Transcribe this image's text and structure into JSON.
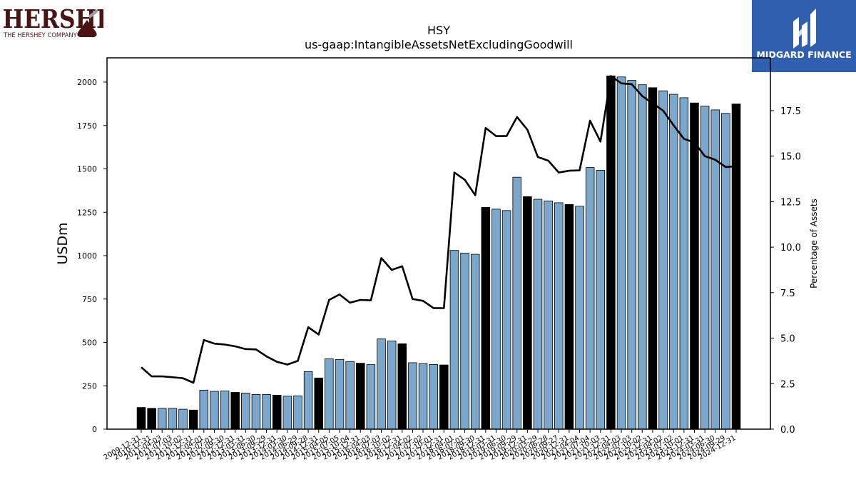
{
  "brand_left": {
    "wordmark": "HERSHEY",
    "company": "THE HERSHEY COMPANY",
    "color": "#4a1414"
  },
  "brand_right": {
    "name": "MIDGARD FINANCE",
    "background": "#2f5fae"
  },
  "chart_data": {
    "type": "bar",
    "title": "HSY",
    "subtitle": "us-gaap:IntangibleAssetsNetExcludingGoodwill",
    "ylabel": "USDm",
    "y2label": "Percentage of Assets",
    "ylim": [
      0,
      2140
    ],
    "y2lim": [
      0,
      20.4
    ],
    "yticks": [
      0,
      250,
      500,
      750,
      1000,
      1250,
      1500,
      1750,
      2000
    ],
    "y2ticks": [
      0.0,
      2.5,
      5.0,
      7.5,
      10.0,
      12.5,
      15.0,
      17.5
    ],
    "colors": {
      "annual": "#000000",
      "quarterly": "#7ba7cc",
      "line": "#000000"
    },
    "categories": [
      "2009-12-31",
      "2010-12-31",
      "2011-04-03",
      "2011-07-03",
      "2011-10-02",
      "2011-12-31",
      "2012-04-01",
      "2012-07-01",
      "2012-09-30",
      "2012-12-31",
      "2013-03-31",
      "2013-06-30",
      "2013-09-29",
      "2013-12-31",
      "2014-03-30",
      "2014-06-29",
      "2014-09-28",
      "2014-12-31",
      "2015-04-05",
      "2015-07-05",
      "2015-10-04",
      "2015-12-31",
      "2016-04-03",
      "2016-07-03",
      "2016-10-02",
      "2016-12-31",
      "2017-04-02",
      "2017-07-02",
      "2017-10-01",
      "2017-12-31",
      "2018-04-01",
      "2018-07-01",
      "2018-09-30",
      "2018-12-31",
      "2019-03-31",
      "2019-06-30",
      "2019-09-29",
      "2019-12-31",
      "2020-03-29",
      "2020-06-28",
      "2020-09-27",
      "2020-12-31",
      "2021-04-04",
      "2021-07-04",
      "2021-10-03",
      "2021-12-31",
      "2022-04-03",
      "2022-07-03",
      "2022-10-02",
      "2022-12-31",
      "2023-04-02",
      "2023-07-02",
      "2023-10-01",
      "2023-12-31",
      "2024-03-31",
      "2024-06-30",
      "2024-09-29",
      "2024-12-31"
    ],
    "annual": [
      true,
      true,
      false,
      false,
      false,
      true,
      false,
      false,
      false,
      true,
      false,
      false,
      false,
      true,
      false,
      false,
      false,
      true,
      false,
      false,
      false,
      true,
      false,
      false,
      false,
      true,
      false,
      false,
      false,
      true,
      false,
      false,
      false,
      true,
      false,
      false,
      false,
      true,
      false,
      false,
      false,
      true,
      false,
      false,
      false,
      true,
      false,
      false,
      false,
      true,
      false,
      false,
      false,
      true,
      false,
      false,
      false,
      true
    ],
    "values": [
      125,
      120,
      120,
      120,
      115,
      110,
      225,
      218,
      220,
      212,
      208,
      200,
      200,
      196,
      190,
      192,
      332,
      295,
      405,
      402,
      390,
      380,
      372,
      520,
      508,
      492,
      383,
      378,
      373,
      370,
      1030,
      1015,
      1008,
      1278,
      1268,
      1260,
      1452,
      1340,
      1325,
      1315,
      1305,
      1295,
      1285,
      1508,
      1492,
      2036,
      2030,
      2010,
      1985,
      1968,
      1950,
      1930,
      1910,
      1880,
      1862,
      1840,
      1820,
      1874
    ],
    "series": [
      {
        "name": "Percentage of Assets",
        "values": [
          3.4,
          2.9,
          2.9,
          2.85,
          2.8,
          2.55,
          4.9,
          4.7,
          4.65,
          4.55,
          4.4,
          4.38,
          4.0,
          3.7,
          3.55,
          3.75,
          5.6,
          5.2,
          7.1,
          7.4,
          6.95,
          7.1,
          7.08,
          9.4,
          8.75,
          8.95,
          7.15,
          7.05,
          6.65,
          6.65,
          14.1,
          13.7,
          12.85,
          16.55,
          16.1,
          16.1,
          17.15,
          16.45,
          14.95,
          14.75,
          14.1,
          14.2,
          14.22,
          16.95,
          15.8,
          19.4,
          19.0,
          18.95,
          18.3,
          17.9,
          17.5,
          16.7,
          15.95,
          15.75,
          15.0,
          14.8,
          14.4,
          14.45
        ]
      }
    ]
  }
}
